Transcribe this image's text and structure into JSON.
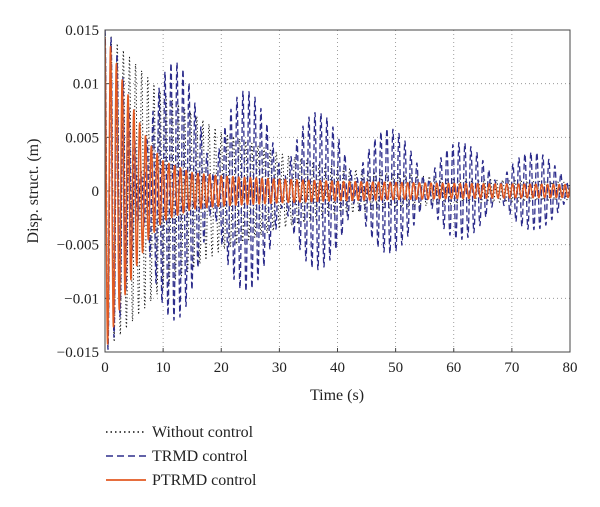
{
  "chart_data": {
    "type": "line",
    "xlabel": "Time (s)",
    "ylabel": "Disp. struct. (m)",
    "xlim": [
      0,
      80
    ],
    "ylim": [
      -0.015,
      0.015
    ],
    "grid": true,
    "grid_style": "dotted",
    "x_ticks": [
      "0",
      "10",
      "20",
      "30",
      "40",
      "50",
      "60",
      "70",
      "80"
    ],
    "y_ticks": [
      "0.015",
      "0.01",
      "0.005",
      "0",
      "−0.005",
      "−0.01",
      "−0.015"
    ],
    "legend_position": "below-left",
    "series": [
      {
        "name": "Without control",
        "color": "#111111",
        "line_style": "dotted",
        "description_values": {
          "initial_amplitude": 0.015,
          "envelope": {
            "x": [
              0,
              10,
              20,
              30,
              40,
              50,
              60,
              70,
              80
            ],
            "y": [
              0.015,
              0.009,
              0.0055,
              0.0035,
              0.0022,
              0.0016,
              0.0012,
              0.001,
              0.0008
            ]
          }
        }
      },
      {
        "name": "TRMD control",
        "color": "#2e2e8c",
        "line_style": "dashed",
        "description_values": {
          "initial_amplitude": 0.015,
          "beat_peaks": {
            "x": [
              0,
              12.3,
              24.6,
              36.9,
              49.2,
              61.5,
              73.8
            ],
            "y": [
              0.015,
              0.012,
              0.0093,
              0.0073,
              0.0058,
              0.0045,
              0.0036
            ]
          }
        }
      },
      {
        "name": "PTRMD control",
        "color": "#e25a22",
        "line_style": "solid",
        "description_values": {
          "initial_amplitude": 0.015,
          "envelope": {
            "x": [
              0,
              2.5,
              5,
              7.5,
              10,
              15,
              20,
              30,
              40,
              60,
              80
            ],
            "y": [
              0.015,
              0.011,
              0.0075,
              0.0045,
              0.0028,
              0.0017,
              0.0014,
              0.0011,
              0.0009,
              0.0007,
              0.0006
            ]
          }
        }
      }
    ]
  }
}
